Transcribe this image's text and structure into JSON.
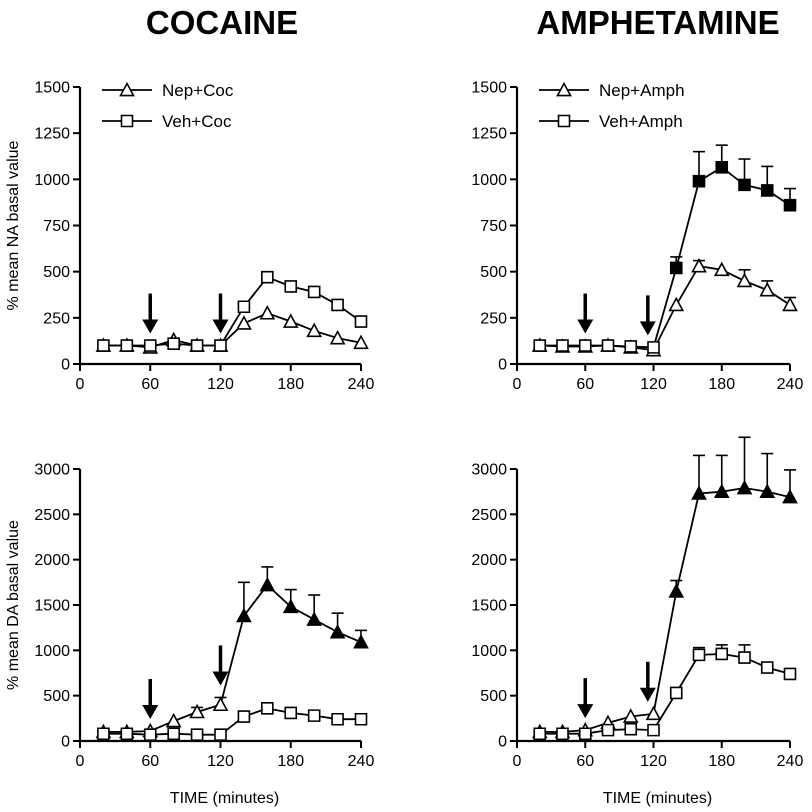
{
  "column_titles": [
    "COCAINE",
    "AMPHETAMINE"
  ],
  "chart_data": [
    {
      "type": "line",
      "title": "",
      "xlabel": "",
      "ylabel": "% mean NA basal value",
      "xlim": [
        0,
        240
      ],
      "ylim": [
        0,
        1500
      ],
      "xticks": [
        0,
        60,
        120,
        180,
        240
      ],
      "yticks": [
        0,
        250,
        500,
        750,
        1000,
        1250,
        1500
      ],
      "arrows_at_x": [
        60,
        120
      ],
      "grid": false,
      "legend": "top-left",
      "x": [
        20,
        40,
        60,
        80,
        100,
        120,
        140,
        160,
        180,
        200,
        220,
        240
      ],
      "series": [
        {
          "name": "Nep+Coc",
          "marker": "triangle",
          "y": [
            100,
            100,
            90,
            130,
            100,
            100,
            220,
            275,
            230,
            180,
            140,
            115
          ],
          "filled": [
            false,
            false,
            false,
            false,
            false,
            false,
            false,
            false,
            false,
            false,
            false,
            false
          ],
          "err": [
            0,
            0,
            0,
            0,
            0,
            0,
            0,
            0,
            0,
            0,
            0,
            0
          ]
        },
        {
          "name": "Veh+Coc",
          "marker": "square",
          "y": [
            100,
            100,
            100,
            110,
            100,
            100,
            310,
            470,
            420,
            390,
            320,
            230
          ],
          "filled": [
            false,
            false,
            false,
            false,
            false,
            false,
            false,
            false,
            false,
            false,
            false,
            false
          ],
          "err": [
            0,
            0,
            0,
            0,
            0,
            0,
            0,
            0,
            0,
            0,
            0,
            0
          ]
        }
      ]
    },
    {
      "type": "line",
      "title": "",
      "xlabel": "",
      "ylabel": "",
      "xlim": [
        0,
        240
      ],
      "ylim": [
        0,
        1500
      ],
      "xticks": [
        0,
        60,
        120,
        180,
        240
      ],
      "yticks": [
        0,
        250,
        500,
        750,
        1000,
        1250,
        1500
      ],
      "arrows_at_x": [
        60,
        115
      ],
      "grid": false,
      "legend": "top-left",
      "x": [
        20,
        40,
        60,
        80,
        100,
        120,
        140,
        160,
        180,
        200,
        220,
        240
      ],
      "series": [
        {
          "name": "Nep+Amph",
          "marker": "triangle",
          "y": [
            100,
            95,
            95,
            100,
            90,
            75,
            320,
            530,
            510,
            450,
            400,
            320
          ],
          "filled": [
            false,
            false,
            false,
            false,
            false,
            false,
            false,
            false,
            false,
            false,
            false,
            false
          ],
          "err": [
            0,
            0,
            0,
            0,
            0,
            0,
            0,
            30,
            0,
            60,
            50,
            40
          ]
        },
        {
          "name": "Veh+Amph",
          "marker": "square",
          "y": [
            100,
            100,
            100,
            100,
            95,
            90,
            520,
            990,
            1065,
            970,
            940,
            860
          ],
          "filled": [
            false,
            false,
            false,
            false,
            false,
            false,
            true,
            true,
            true,
            true,
            true,
            true
          ],
          "err": [
            0,
            0,
            0,
            0,
            0,
            0,
            60,
            160,
            120,
            140,
            130,
            90
          ]
        }
      ]
    },
    {
      "type": "line",
      "title": "",
      "xlabel": "TIME (minutes)",
      "ylabel": "% mean DA basal value",
      "xlim": [
        0,
        240
      ],
      "ylim": [
        0,
        3000
      ],
      "xticks": [
        0,
        60,
        120,
        180,
        240
      ],
      "yticks": [
        0,
        500,
        1000,
        1500,
        2000,
        2500,
        3000
      ],
      "arrows_at_x": [
        60,
        120
      ],
      "grid": false,
      "x": [
        20,
        40,
        60,
        80,
        100,
        120,
        140,
        160,
        180,
        200,
        220,
        240
      ],
      "series": [
        {
          "name": "Nep+Coc",
          "marker": "triangle",
          "y": [
            100,
            100,
            110,
            220,
            320,
            400,
            1380,
            1720,
            1480,
            1340,
            1200,
            1090
          ],
          "filled": [
            false,
            false,
            false,
            false,
            false,
            false,
            true,
            true,
            true,
            true,
            true,
            true
          ],
          "err": [
            0,
            0,
            0,
            0,
            50,
            80,
            370,
            200,
            190,
            270,
            210,
            130
          ]
        },
        {
          "name": "Veh+Coc",
          "marker": "square",
          "y": [
            80,
            80,
            70,
            80,
            70,
            70,
            270,
            360,
            310,
            280,
            240,
            240
          ],
          "filled": [
            false,
            false,
            false,
            false,
            false,
            false,
            false,
            false,
            false,
            false,
            false,
            false
          ],
          "err": [
            0,
            0,
            0,
            0,
            0,
            0,
            0,
            0,
            0,
            0,
            0,
            0
          ]
        }
      ]
    },
    {
      "type": "line",
      "title": "",
      "xlabel": "TIME (minutes)",
      "ylabel": "",
      "xlim": [
        0,
        240
      ],
      "ylim": [
        0,
        3000
      ],
      "xticks": [
        0,
        60,
        120,
        180,
        240
      ],
      "yticks": [
        0,
        500,
        1000,
        1500,
        2000,
        2500,
        3000
      ],
      "arrows_at_x": [
        60,
        115
      ],
      "grid": false,
      "x": [
        20,
        40,
        60,
        80,
        100,
        120,
        140,
        160,
        180,
        200,
        220,
        240
      ],
      "series": [
        {
          "name": "Nep+Amph",
          "marker": "triangle",
          "y": [
            100,
            100,
            120,
            200,
            270,
            300,
            1650,
            2730,
            2750,
            2790,
            2750,
            2690
          ],
          "filled": [
            false,
            false,
            false,
            false,
            false,
            false,
            true,
            true,
            true,
            true,
            true,
            true
          ],
          "err": [
            0,
            0,
            0,
            0,
            0,
            0,
            120,
            420,
            400,
            560,
            420,
            300
          ]
        },
        {
          "name": "Veh+Amph",
          "marker": "square",
          "y": [
            80,
            80,
            80,
            120,
            130,
            120,
            530,
            950,
            960,
            920,
            810,
            740
          ],
          "filled": [
            false,
            false,
            false,
            false,
            false,
            false,
            false,
            false,
            false,
            false,
            false,
            false
          ],
          "err": [
            0,
            0,
            0,
            0,
            0,
            0,
            0,
            80,
            100,
            140,
            0,
            0
          ]
        }
      ]
    }
  ]
}
